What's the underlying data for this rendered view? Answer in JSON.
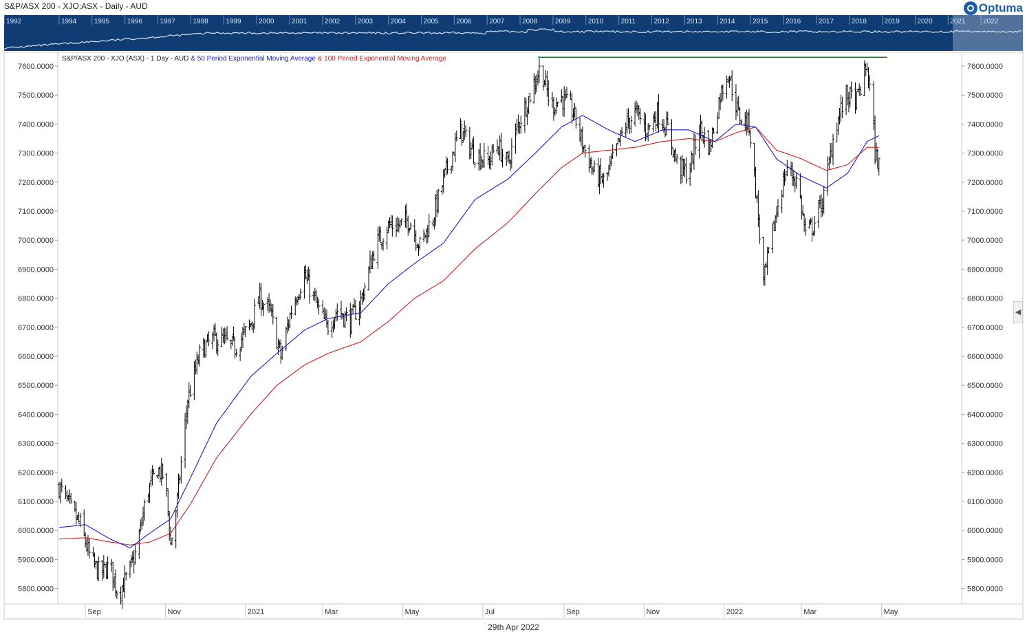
{
  "header": {
    "title": "S&P/ASX 200 - XJO:ASX - Daily - AUD",
    "brand": "Optuma"
  },
  "overview": {
    "years": [
      "1992",
      "1994",
      "1995",
      "1996",
      "1997",
      "1998",
      "1999",
      "2000",
      "2001",
      "2002",
      "2003",
      "2004",
      "2005",
      "2006",
      "2007",
      "2008",
      "2009",
      "2010",
      "2011",
      "2012",
      "2013",
      "2014",
      "2015",
      "2016",
      "2017",
      "2018",
      "2019",
      "2020",
      "2021",
      "2022"
    ],
    "bg_color": "#0f3d73"
  },
  "legend": {
    "base": "S&P/ASX 200 - XJO (ASX) - 1 Day - AUD",
    "sep1": " & ",
    "ema50": "50 Period Exponential Moving Average",
    "sep2": " & ",
    "ema100": "100 Period Exponential Moving Average"
  },
  "footer": {
    "date": "29th Apr 2022"
  },
  "chart_data": {
    "type": "line",
    "series_kinds": [
      "ohlc",
      "ema50",
      "ema100"
    ],
    "colors": {
      "price": "#000000",
      "ema50": "#1a1ad8",
      "ema100": "#d81a1a",
      "resistance": "#1a7a1a"
    },
    "ylim": [
      5760,
      7640
    ],
    "y_ticks": [
      5800,
      5900,
      6000,
      6100,
      6200,
      6300,
      6400,
      6500,
      6600,
      6700,
      6800,
      6900,
      7000,
      7100,
      7200,
      7300,
      7400,
      7500,
      7600
    ],
    "y_tick_labels": [
      "5800.0000",
      "5900.0000",
      "6000.0000",
      "6100.0000",
      "6200.0000",
      "6300.0000",
      "6400.0000",
      "6500.0000",
      "6600.0000",
      "6700.0000",
      "6800.0000",
      "6900.0000",
      "7000.0000",
      "7100.0000",
      "7200.0000",
      "7300.0000",
      "7400.0000",
      "7500.0000",
      "7600.0000"
    ],
    "x_labels": [
      "Sep",
      "Nov",
      "2021",
      "Mar",
      "May",
      "Jul",
      "Sep",
      "Nov",
      "2022",
      "Mar",
      "May"
    ],
    "x_label_dates": [
      "2020-09-01",
      "2020-11-01",
      "2021-01-01",
      "2021-03-01",
      "2021-05-01",
      "2021-07-01",
      "2021-09-01",
      "2021-11-01",
      "2022-01-01",
      "2022-03-01",
      "2022-05-01"
    ],
    "x_range": [
      "2020-08-12",
      "2022-06-30"
    ],
    "price_anchors": [
      [
        "2020-08-12",
        6150
      ],
      [
        "2020-08-20",
        6080
      ],
      [
        "2020-08-28",
        6020
      ],
      [
        "2020-09-05",
        5900
      ],
      [
        "2020-09-12",
        5850
      ],
      [
        "2020-09-20",
        5880
      ],
      [
        "2020-09-26",
        5780
      ],
      [
        "2020-10-04",
        5850
      ],
      [
        "2020-10-10",
        5930
      ],
      [
        "2020-10-18",
        6130
      ],
      [
        "2020-10-26",
        6210
      ],
      [
        "2020-11-01",
        6180
      ],
      [
        "2020-11-05",
        5950
      ],
      [
        "2020-11-10",
        6100
      ],
      [
        "2020-11-18",
        6450
      ],
      [
        "2020-11-28",
        6620
      ],
      [
        "2020-12-08",
        6660
      ],
      [
        "2020-12-16",
        6650
      ],
      [
        "2020-12-24",
        6630
      ],
      [
        "2021-01-04",
        6700
      ],
      [
        "2021-01-12",
        6800
      ],
      [
        "2021-01-20",
        6750
      ],
      [
        "2021-01-28",
        6600
      ],
      [
        "2021-02-06",
        6780
      ],
      [
        "2021-02-15",
        6880
      ],
      [
        "2021-02-24",
        6780
      ],
      [
        "2021-03-04",
        6700
      ],
      [
        "2021-03-12",
        6760
      ],
      [
        "2021-03-22",
        6720
      ],
      [
        "2021-03-30",
        6790
      ],
      [
        "2021-04-10",
        6980
      ],
      [
        "2021-04-20",
        7050
      ],
      [
        "2021-04-28",
        7050
      ],
      [
        "2021-05-06",
        7070
      ],
      [
        "2021-05-14",
        6980
      ],
      [
        "2021-05-24",
        7080
      ],
      [
        "2021-06-04",
        7250
      ],
      [
        "2021-06-14",
        7380
      ],
      [
        "2021-06-24",
        7300
      ],
      [
        "2021-07-05",
        7270
      ],
      [
        "2021-07-12",
        7330
      ],
      [
        "2021-07-20",
        7260
      ],
      [
        "2021-07-28",
        7400
      ],
      [
        "2021-08-06",
        7500
      ],
      [
        "2021-08-14",
        7600
      ],
      [
        "2021-08-22",
        7460
      ],
      [
        "2021-08-30",
        7490
      ],
      [
        "2021-09-08",
        7440
      ],
      [
        "2021-09-16",
        7320
      ],
      [
        "2021-09-24",
        7230
      ],
      [
        "2021-10-02",
        7200
      ],
      [
        "2021-10-10",
        7300
      ],
      [
        "2021-10-18",
        7400
      ],
      [
        "2021-10-26",
        7440
      ],
      [
        "2021-11-03",
        7380
      ],
      [
        "2021-11-11",
        7440
      ],
      [
        "2021-11-19",
        7380
      ],
      [
        "2021-11-27",
        7250
      ],
      [
        "2021-12-05",
        7230
      ],
      [
        "2021-12-13",
        7390
      ],
      [
        "2021-12-21",
        7320
      ],
      [
        "2021-12-29",
        7500
      ],
      [
        "2022-01-04",
        7580
      ],
      [
        "2022-01-12",
        7430
      ],
      [
        "2022-01-20",
        7400
      ],
      [
        "2022-01-26",
        7130
      ],
      [
        "2022-01-31",
        6850
      ],
      [
        "2022-02-06",
        7000
      ],
      [
        "2022-02-12",
        7150
      ],
      [
        "2022-02-18",
        7250
      ],
      [
        "2022-02-26",
        7200
      ],
      [
        "2022-03-04",
        7020
      ],
      [
        "2022-03-10",
        7050
      ],
      [
        "2022-03-18",
        7150
      ],
      [
        "2022-03-26",
        7380
      ],
      [
        "2022-04-04",
        7500
      ],
      [
        "2022-04-12",
        7480
      ],
      [
        "2022-04-20",
        7600
      ],
      [
        "2022-04-24",
        7450
      ],
      [
        "2022-04-26",
        7300
      ],
      [
        "2022-04-29",
        7260
      ]
    ],
    "ema50_anchors": [
      [
        "2020-08-12",
        6010
      ],
      [
        "2020-09-01",
        6020
      ],
      [
        "2020-09-20",
        5970
      ],
      [
        "2020-10-05",
        5940
      ],
      [
        "2020-10-20",
        5990
      ],
      [
        "2020-11-05",
        6040
      ],
      [
        "2020-11-20",
        6180
      ],
      [
        "2020-12-10",
        6370
      ],
      [
        "2021-01-05",
        6530
      ],
      [
        "2021-01-25",
        6610
      ],
      [
        "2021-02-15",
        6690
      ],
      [
        "2021-03-05",
        6730
      ],
      [
        "2021-03-30",
        6750
      ],
      [
        "2021-04-20",
        6850
      ],
      [
        "2021-05-10",
        6920
      ],
      [
        "2021-06-01",
        6990
      ],
      [
        "2021-06-25",
        7140
      ],
      [
        "2021-07-20",
        7210
      ],
      [
        "2021-08-10",
        7300
      ],
      [
        "2021-08-30",
        7390
      ],
      [
        "2021-09-15",
        7430
      ],
      [
        "2021-10-05",
        7380
      ],
      [
        "2021-10-25",
        7340
      ],
      [
        "2021-11-15",
        7380
      ],
      [
        "2021-12-05",
        7380
      ],
      [
        "2021-12-25",
        7340
      ],
      [
        "2022-01-10",
        7400
      ],
      [
        "2022-01-25",
        7390
      ],
      [
        "2022-02-10",
        7280
      ],
      [
        "2022-03-01",
        7220
      ],
      [
        "2022-03-20",
        7180
      ],
      [
        "2022-04-05",
        7230
      ],
      [
        "2022-04-20",
        7340
      ],
      [
        "2022-04-29",
        7360
      ]
    ],
    "ema100_anchors": [
      [
        "2020-08-12",
        5970
      ],
      [
        "2020-09-01",
        5975
      ],
      [
        "2020-09-20",
        5960
      ],
      [
        "2020-10-05",
        5950
      ],
      [
        "2020-10-20",
        5960
      ],
      [
        "2020-11-05",
        5990
      ],
      [
        "2020-11-20",
        6090
      ],
      [
        "2020-12-10",
        6250
      ],
      [
        "2021-01-05",
        6400
      ],
      [
        "2021-01-25",
        6500
      ],
      [
        "2021-02-15",
        6570
      ],
      [
        "2021-03-05",
        6610
      ],
      [
        "2021-03-30",
        6650
      ],
      [
        "2021-04-20",
        6720
      ],
      [
        "2021-05-10",
        6800
      ],
      [
        "2021-06-01",
        6860
      ],
      [
        "2021-06-25",
        6970
      ],
      [
        "2021-07-20",
        7060
      ],
      [
        "2021-08-10",
        7160
      ],
      [
        "2021-08-30",
        7250
      ],
      [
        "2021-09-15",
        7300
      ],
      [
        "2021-10-05",
        7310
      ],
      [
        "2021-10-25",
        7320
      ],
      [
        "2021-11-15",
        7340
      ],
      [
        "2021-12-05",
        7350
      ],
      [
        "2021-12-25",
        7340
      ],
      [
        "2022-01-10",
        7370
      ],
      [
        "2022-01-25",
        7390
      ],
      [
        "2022-02-10",
        7310
      ],
      [
        "2022-03-01",
        7280
      ],
      [
        "2022-03-20",
        7240
      ],
      [
        "2022-04-05",
        7260
      ],
      [
        "2022-04-20",
        7320
      ],
      [
        "2022-04-29",
        7320
      ]
    ],
    "resistance": {
      "value": 7630,
      "from": "2021-08-12",
      "to": "2022-04-29"
    }
  }
}
